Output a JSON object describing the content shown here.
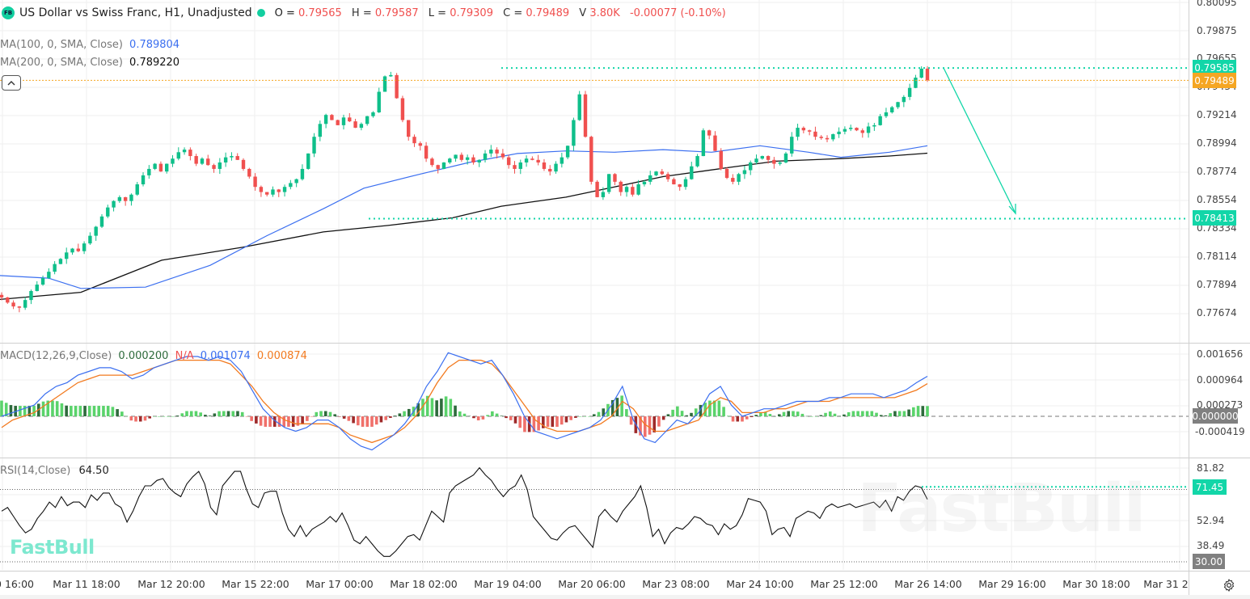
{
  "header": {
    "badge": "FB",
    "title": "US Dollar vs Swiss Franc, H1, Unadjusted",
    "ohlc": {
      "o_label": "O =",
      "o": "0.79565",
      "h_label": "H =",
      "h": "0.79587",
      "l_label": "L =",
      "l": "0.79309",
      "c_label": "C =",
      "c": "0.79489",
      "v_label": "V",
      "v": "3.80K",
      "change": "-0.00077 (-0.10%)"
    }
  },
  "indicators": {
    "ma100": {
      "label": "MA(100, 0, SMA, Close)",
      "value": "0.789804",
      "color": "#3b6ff0"
    },
    "ma200": {
      "label": "MA(200, 0, SMA, Close)",
      "value": "0.789220",
      "color": "#111111"
    },
    "macd": {
      "label": "MACD(12,26,9,Close)",
      "hist": "0.000200",
      "na": "N/A",
      "macd": "0.001074",
      "signal": "0.000874"
    },
    "rsi": {
      "label": "RSI(14,Close)",
      "value": "64.50"
    }
  },
  "price_axis": {
    "ticks": [
      "0.80095",
      "0.79875",
      "0.79655",
      "0.79434",
      "0.79214",
      "0.78994",
      "0.78774",
      "0.78554",
      "0.78334",
      "0.78114",
      "0.77894",
      "0.77674"
    ],
    "tag_resistance": "0.79585",
    "tag_last": "0.79489",
    "tag_support": "0.78413"
  },
  "macd_axis": {
    "ticks": [
      "0.001656",
      "0.000964",
      "0.000273",
      "-0.000419"
    ],
    "zero_tag": "0.000000"
  },
  "rsi_axis": {
    "ticks": [
      "81.82",
      "52.94",
      "38.49"
    ],
    "tag_value": "71.45",
    "tag_low": "30.00"
  },
  "time_axis": {
    "labels": [
      "0 16:00",
      "Mar 11 18:00",
      "Mar 12 20:00",
      "Mar 15 22:00",
      "Mar 17 00:00",
      "Mar 18 02:00",
      "Mar 19 04:00",
      "Mar 20 06:00",
      "Mar 23 08:00",
      "Mar 24 10:00",
      "Mar 25 12:00",
      "Mar 26 14:00",
      "Mar 29 16:00",
      "Mar 30 18:00",
      "Mar 31 2"
    ]
  },
  "watermark": "FastBull",
  "colors": {
    "up": "#0fbf8a",
    "down": "#f0504f",
    "accent": "#12d6a8",
    "last_price": "#f5a623",
    "ma100": "#3b6ff0",
    "ma200": "#111111",
    "macd_line": "#3b6ff0",
    "signal_line": "#f27a1f",
    "hist_up_strong": "#5ad36b",
    "hist_up_weak": "#2e6b3c",
    "hist_down_strong": "#f0706a",
    "hist_down_weak": "#9e2a2a",
    "grid": "#efefef"
  },
  "chart_data": [
    {
      "type": "candlestick",
      "title": "US Dollar vs Swiss Franc, H1, Unadjusted",
      "ylim": [
        0.7758,
        0.8012
      ],
      "x_labels": [
        "0 16:00",
        "Mar 11 18:00",
        "Mar 12 20:00",
        "Mar 15 22:00",
        "Mar 17 00:00",
        "Mar 18 02:00",
        "Mar 19 04:00",
        "Mar 20 06:00",
        "Mar 23 08:00",
        "Mar 24 10:00",
        "Mar 25 12:00",
        "Mar 26 14:00"
      ],
      "close_path": [
        0.778,
        0.7776,
        0.7773,
        0.7772,
        0.7778,
        0.7785,
        0.779,
        0.7795,
        0.78,
        0.7806,
        0.781,
        0.7815,
        0.7818,
        0.7816,
        0.7822,
        0.7828,
        0.7835,
        0.7843,
        0.785,
        0.7855,
        0.7858,
        0.7855,
        0.786,
        0.7868,
        0.7875,
        0.788,
        0.7884,
        0.7878,
        0.7884,
        0.7888,
        0.7893,
        0.7895,
        0.789,
        0.7884,
        0.7888,
        0.7883,
        0.788,
        0.7885,
        0.7889,
        0.789,
        0.7887,
        0.788,
        0.7874,
        0.7866,
        0.7862,
        0.786,
        0.7864,
        0.7862,
        0.7866,
        0.7869,
        0.7872,
        0.788,
        0.7892,
        0.7905,
        0.7915,
        0.7922,
        0.7918,
        0.7914,
        0.792,
        0.7917,
        0.7912,
        0.7915,
        0.7921,
        0.7924,
        0.794,
        0.7952,
        0.7953,
        0.7935,
        0.7918,
        0.7905,
        0.79,
        0.7898,
        0.7888,
        0.7883,
        0.788,
        0.7885,
        0.7888,
        0.7891,
        0.7887,
        0.7889,
        0.7885,
        0.7887,
        0.7892,
        0.7895,
        0.7892,
        0.7889,
        0.7883,
        0.788,
        0.7885,
        0.7888,
        0.7887,
        0.7885,
        0.788,
        0.7878,
        0.7884,
        0.7889,
        0.7898,
        0.7918,
        0.7938,
        0.7905,
        0.787,
        0.7858,
        0.7862,
        0.7876,
        0.787,
        0.7862,
        0.7866,
        0.786,
        0.7868,
        0.787,
        0.7875,
        0.7878,
        0.7876,
        0.7872,
        0.7868,
        0.7866,
        0.7872,
        0.7882,
        0.789,
        0.791,
        0.7906,
        0.7894,
        0.788,
        0.7873,
        0.787,
        0.7876,
        0.7879,
        0.7885,
        0.7888,
        0.789,
        0.7887,
        0.7884,
        0.7885,
        0.7892,
        0.7905,
        0.7912,
        0.791,
        0.7909,
        0.7905,
        0.7904,
        0.7903,
        0.7907,
        0.7909,
        0.7911,
        0.7912,
        0.791,
        0.7908,
        0.7913,
        0.7914,
        0.7921,
        0.7924,
        0.7928,
        0.7932,
        0.7936,
        0.7943,
        0.7951,
        0.7958,
        0.7949
      ],
      "resistance": 0.79585,
      "support": 0.78413,
      "last": 0.79489,
      "series": [
        {
          "name": "MA(100)",
          "last": 0.789804
        },
        {
          "name": "MA(200)",
          "last": 0.78922
        }
      ],
      "annotation": "Downward arrow projection from 0.79585 resistance to 0.78413 support"
    },
    {
      "type": "line+bar",
      "title": "MACD(12,26,9,Close)",
      "ylim": [
        -0.00075,
        0.0019
      ],
      "last": {
        "histogram": 0.0002,
        "macd": 0.001074,
        "signal": 0.000874
      },
      "macd_path": [
        0.0,
        0.0001,
        0.0002,
        0.0003,
        0.0006,
        0.0008,
        0.0009,
        0.0011,
        0.0012,
        0.0013,
        0.0013,
        0.0012,
        0.001,
        0.0011,
        0.0013,
        0.0014,
        0.0015,
        0.0016,
        0.0016,
        0.0015,
        0.0016,
        0.0015,
        0.0012,
        0.0007,
        0.0002,
        -0.0001,
        -0.0003,
        -0.0004,
        -0.0003,
        -0.0001,
        -0.0001,
        -0.0003,
        -0.0006,
        -0.0008,
        -0.0009,
        -0.0007,
        -0.0005,
        -0.0002,
        0.0002,
        0.0008,
        0.0012,
        0.0017,
        0.0016,
        0.0015,
        0.0014,
        0.0015,
        0.0011,
        0.0006,
        0.0,
        -0.0004,
        -0.0005,
        -0.0006,
        -0.0005,
        -0.0004,
        -0.0003,
        -0.0001,
        0.0003,
        0.0008,
        -0.0001,
        -0.0006,
        -0.0007,
        -0.0004,
        -0.0001,
        -0.0002,
        0.0001,
        0.0006,
        0.0008,
        0.0003,
        0.0,
        0.0001,
        0.0002,
        0.0002,
        0.0003,
        0.0004,
        0.0004,
        0.0004,
        0.0005,
        0.0005,
        0.0006,
        0.0006,
        0.0006,
        0.0005,
        0.0006,
        0.0007,
        0.0009,
        0.00107
      ],
      "signal_path": [
        -0.0003,
        -0.0001,
        0.0,
        0.0001,
        0.0003,
        0.0005,
        0.0007,
        0.0009,
        0.001,
        0.0011,
        0.0011,
        0.0011,
        0.0011,
        0.0012,
        0.0013,
        0.0014,
        0.0015,
        0.0015,
        0.0015,
        0.0015,
        0.0015,
        0.0014,
        0.0011,
        0.0008,
        0.0004,
        0.0001,
        -0.0001,
        -0.0002,
        -0.0002,
        -0.0002,
        -0.0002,
        -0.0003,
        -0.0005,
        -0.0006,
        -0.0007,
        -0.0006,
        -0.0005,
        -0.0003,
        0.0,
        0.0004,
        0.0009,
        0.0013,
        0.0015,
        0.0015,
        0.0015,
        0.0014,
        0.0011,
        0.0007,
        0.0003,
        -0.0001,
        -0.0003,
        -0.0004,
        -0.0004,
        -0.0004,
        -0.0003,
        -0.0002,
        0.0,
        0.0004,
        0.0002,
        -0.0002,
        -0.0004,
        -0.0004,
        -0.0003,
        -0.0002,
        -0.0001,
        0.0003,
        0.0005,
        0.0004,
        0.0001,
        0.0001,
        0.0001,
        0.0002,
        0.0002,
        0.0003,
        0.0004,
        0.0004,
        0.0004,
        0.0005,
        0.0005,
        0.0005,
        0.0005,
        0.0005,
        0.0005,
        0.0006,
        0.0007,
        0.000874
      ]
    },
    {
      "type": "line",
      "title": "RSI(14,Close)",
      "ylim": [
        25,
        85
      ],
      "levels": [
        70,
        30
      ],
      "last": 64.5,
      "tag": 71.45,
      "rsi_path": [
        58,
        60,
        55,
        50,
        46,
        48,
        54,
        58,
        63,
        60,
        66,
        61,
        63,
        63,
        60,
        67,
        64,
        68,
        68,
        62,
        60,
        52,
        58,
        66,
        72,
        72,
        75,
        76,
        71,
        68,
        66,
        73,
        77,
        80,
        73,
        60,
        56,
        72,
        76,
        80,
        80,
        70,
        62,
        60,
        68,
        69,
        69,
        57,
        48,
        44,
        50,
        44,
        48,
        50,
        52,
        55,
        52,
        57,
        50,
        42,
        40,
        44,
        40,
        36,
        33,
        33,
        36,
        40,
        44,
        45,
        42,
        50,
        58,
        55,
        52,
        68,
        72,
        74,
        76,
        78,
        82,
        78,
        75,
        70,
        66,
        70,
        72,
        78,
        70,
        55,
        51,
        47,
        43,
        42,
        46,
        49,
        50,
        46,
        42,
        38,
        55,
        59,
        55,
        52,
        58,
        62,
        66,
        72,
        60,
        44,
        48,
        40,
        46,
        49,
        48,
        51,
        55,
        54,
        51,
        50,
        45,
        51,
        48,
        50,
        56,
        65,
        64,
        63,
        58,
        45,
        48,
        49,
        44,
        54,
        56,
        58,
        57,
        54,
        60,
        62,
        60,
        61,
        62,
        60,
        61,
        62,
        63,
        60,
        64,
        58,
        66,
        64,
        69,
        72,
        71,
        64.5
      ]
    }
  ]
}
